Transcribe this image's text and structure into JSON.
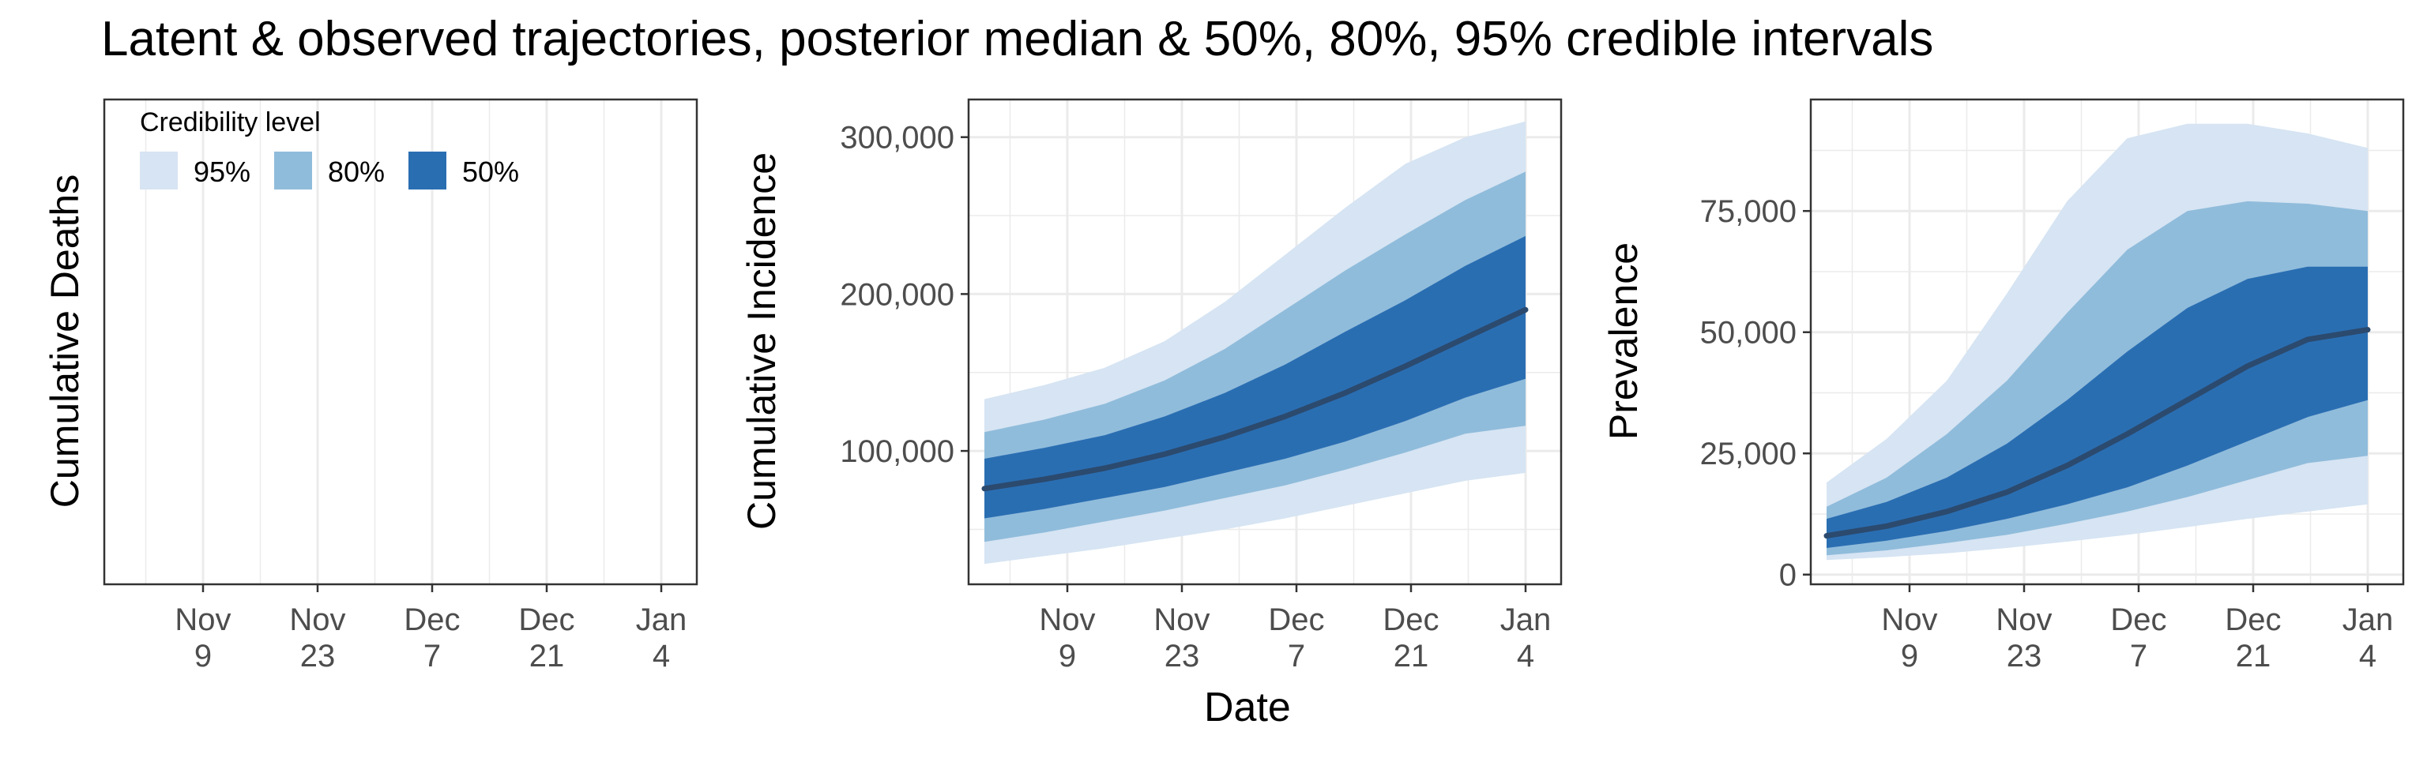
{
  "title": "Latent & observed trajectories, posterior median & 50%, 80%, 95% credible intervals",
  "colors": {
    "ci95": "#d6e4f3",
    "ci80": "#90bcdb",
    "ci50": "#2a6eb2",
    "median": "#2b4a6e",
    "grid": "#ebebeb",
    "axis": "#333333"
  },
  "chart_data": [
    {
      "type": "area",
      "title": "",
      "xlabel": "",
      "ylabel": "Cumulative Deaths",
      "x_ticks": [
        "Nov\n9",
        "Nov\n23",
        "Dec\n7",
        "Dec\n21",
        "Jan\n4"
      ],
      "y_ticks": [],
      "legend": {
        "title": "Credibility level",
        "position": "top-left",
        "items": [
          {
            "label": "95%",
            "color": "#d6e4f3"
          },
          {
            "label": "80%",
            "color": "#90bcdb"
          },
          {
            "label": "50%",
            "color": "#2a6eb2"
          }
        ]
      },
      "grid": true,
      "series": []
    },
    {
      "type": "area",
      "title": "",
      "xlabel": "Date",
      "ylabel": "Cumulative Incidence",
      "x_ticks": [
        "Nov\n9",
        "Nov\n23",
        "Dec\n7",
        "Dec\n21",
        "Jan\n4"
      ],
      "y_ticks": [
        "100,000",
        "200,000",
        "300,000"
      ],
      "ylim": [
        15000,
        324000
      ],
      "grid": true,
      "x": [
        "Nov 2",
        "Nov 9",
        "Nov 16",
        "Nov 23",
        "Nov 30",
        "Dec 7",
        "Dec 14",
        "Dec 21",
        "Dec 28",
        "Jan 4"
      ],
      "series": [
        {
          "interval": "95%",
          "lower": [
            28000,
            33000,
            38000,
            44000,
            50000,
            57000,
            65000,
            73000,
            81000,
            86000
          ],
          "upper": [
            133000,
            142000,
            153000,
            170000,
            195000,
            225000,
            255000,
            283000,
            300000,
            310000
          ]
        },
        {
          "interval": "80%",
          "lower": [
            42000,
            48000,
            55000,
            62000,
            70000,
            78000,
            88000,
            99000,
            111000,
            116000
          ],
          "upper": [
            112000,
            120000,
            130000,
            145000,
            165000,
            190000,
            215000,
            238000,
            260000,
            278000
          ]
        },
        {
          "interval": "50%",
          "lower": [
            57000,
            63000,
            70000,
            77000,
            86000,
            95000,
            106000,
            119000,
            134000,
            146000
          ],
          "upper": [
            95000,
            102000,
            110000,
            122000,
            137000,
            155000,
            176000,
            196000,
            218000,
            237000
          ]
        },
        {
          "interval": "median",
          "values": [
            76000,
            82000,
            89000,
            98000,
            109000,
            122000,
            137000,
            154000,
            172000,
            190000
          ]
        }
      ]
    },
    {
      "type": "area",
      "title": "",
      "xlabel": "",
      "ylabel": "Prevalence",
      "x_ticks": [
        "Nov\n9",
        "Nov\n23",
        "Dec\n7",
        "Dec\n21",
        "Jan\n4"
      ],
      "y_ticks": [
        "0",
        "25,000",
        "50,000",
        "75,000"
      ],
      "ylim": [
        -2000,
        98000
      ],
      "grid": true,
      "x": [
        "Nov 2",
        "Nov 9",
        "Nov 16",
        "Nov 23",
        "Nov 30",
        "Dec 7",
        "Dec 14",
        "Dec 21",
        "Dec 28",
        "Jan 4"
      ],
      "series": [
        {
          "interval": "95%",
          "lower": [
            3000,
            3600,
            4400,
            5500,
            6800,
            8200,
            9800,
            11500,
            13000,
            14500
          ],
          "upper": [
            19000,
            28000,
            40000,
            58000,
            77000,
            90000,
            93000,
            93000,
            91000,
            88000
          ]
        },
        {
          "interval": "80%",
          "lower": [
            4000,
            5000,
            6500,
            8200,
            10500,
            13000,
            16000,
            19500,
            23000,
            24500
          ],
          "upper": [
            14000,
            20000,
            29000,
            40000,
            54000,
            67000,
            75000,
            77000,
            76500,
            75000
          ]
        },
        {
          "interval": "50%",
          "lower": [
            5500,
            7000,
            9000,
            11500,
            14500,
            18000,
            22500,
            27500,
            32500,
            36000
          ],
          "upper": [
            11500,
            15000,
            20000,
            27000,
            36000,
            46000,
            55000,
            61000,
            63500,
            63500
          ]
        },
        {
          "interval": "median",
          "values": [
            8000,
            10000,
            13000,
            17000,
            22500,
            29000,
            36000,
            43000,
            48500,
            50500
          ]
        }
      ]
    }
  ]
}
